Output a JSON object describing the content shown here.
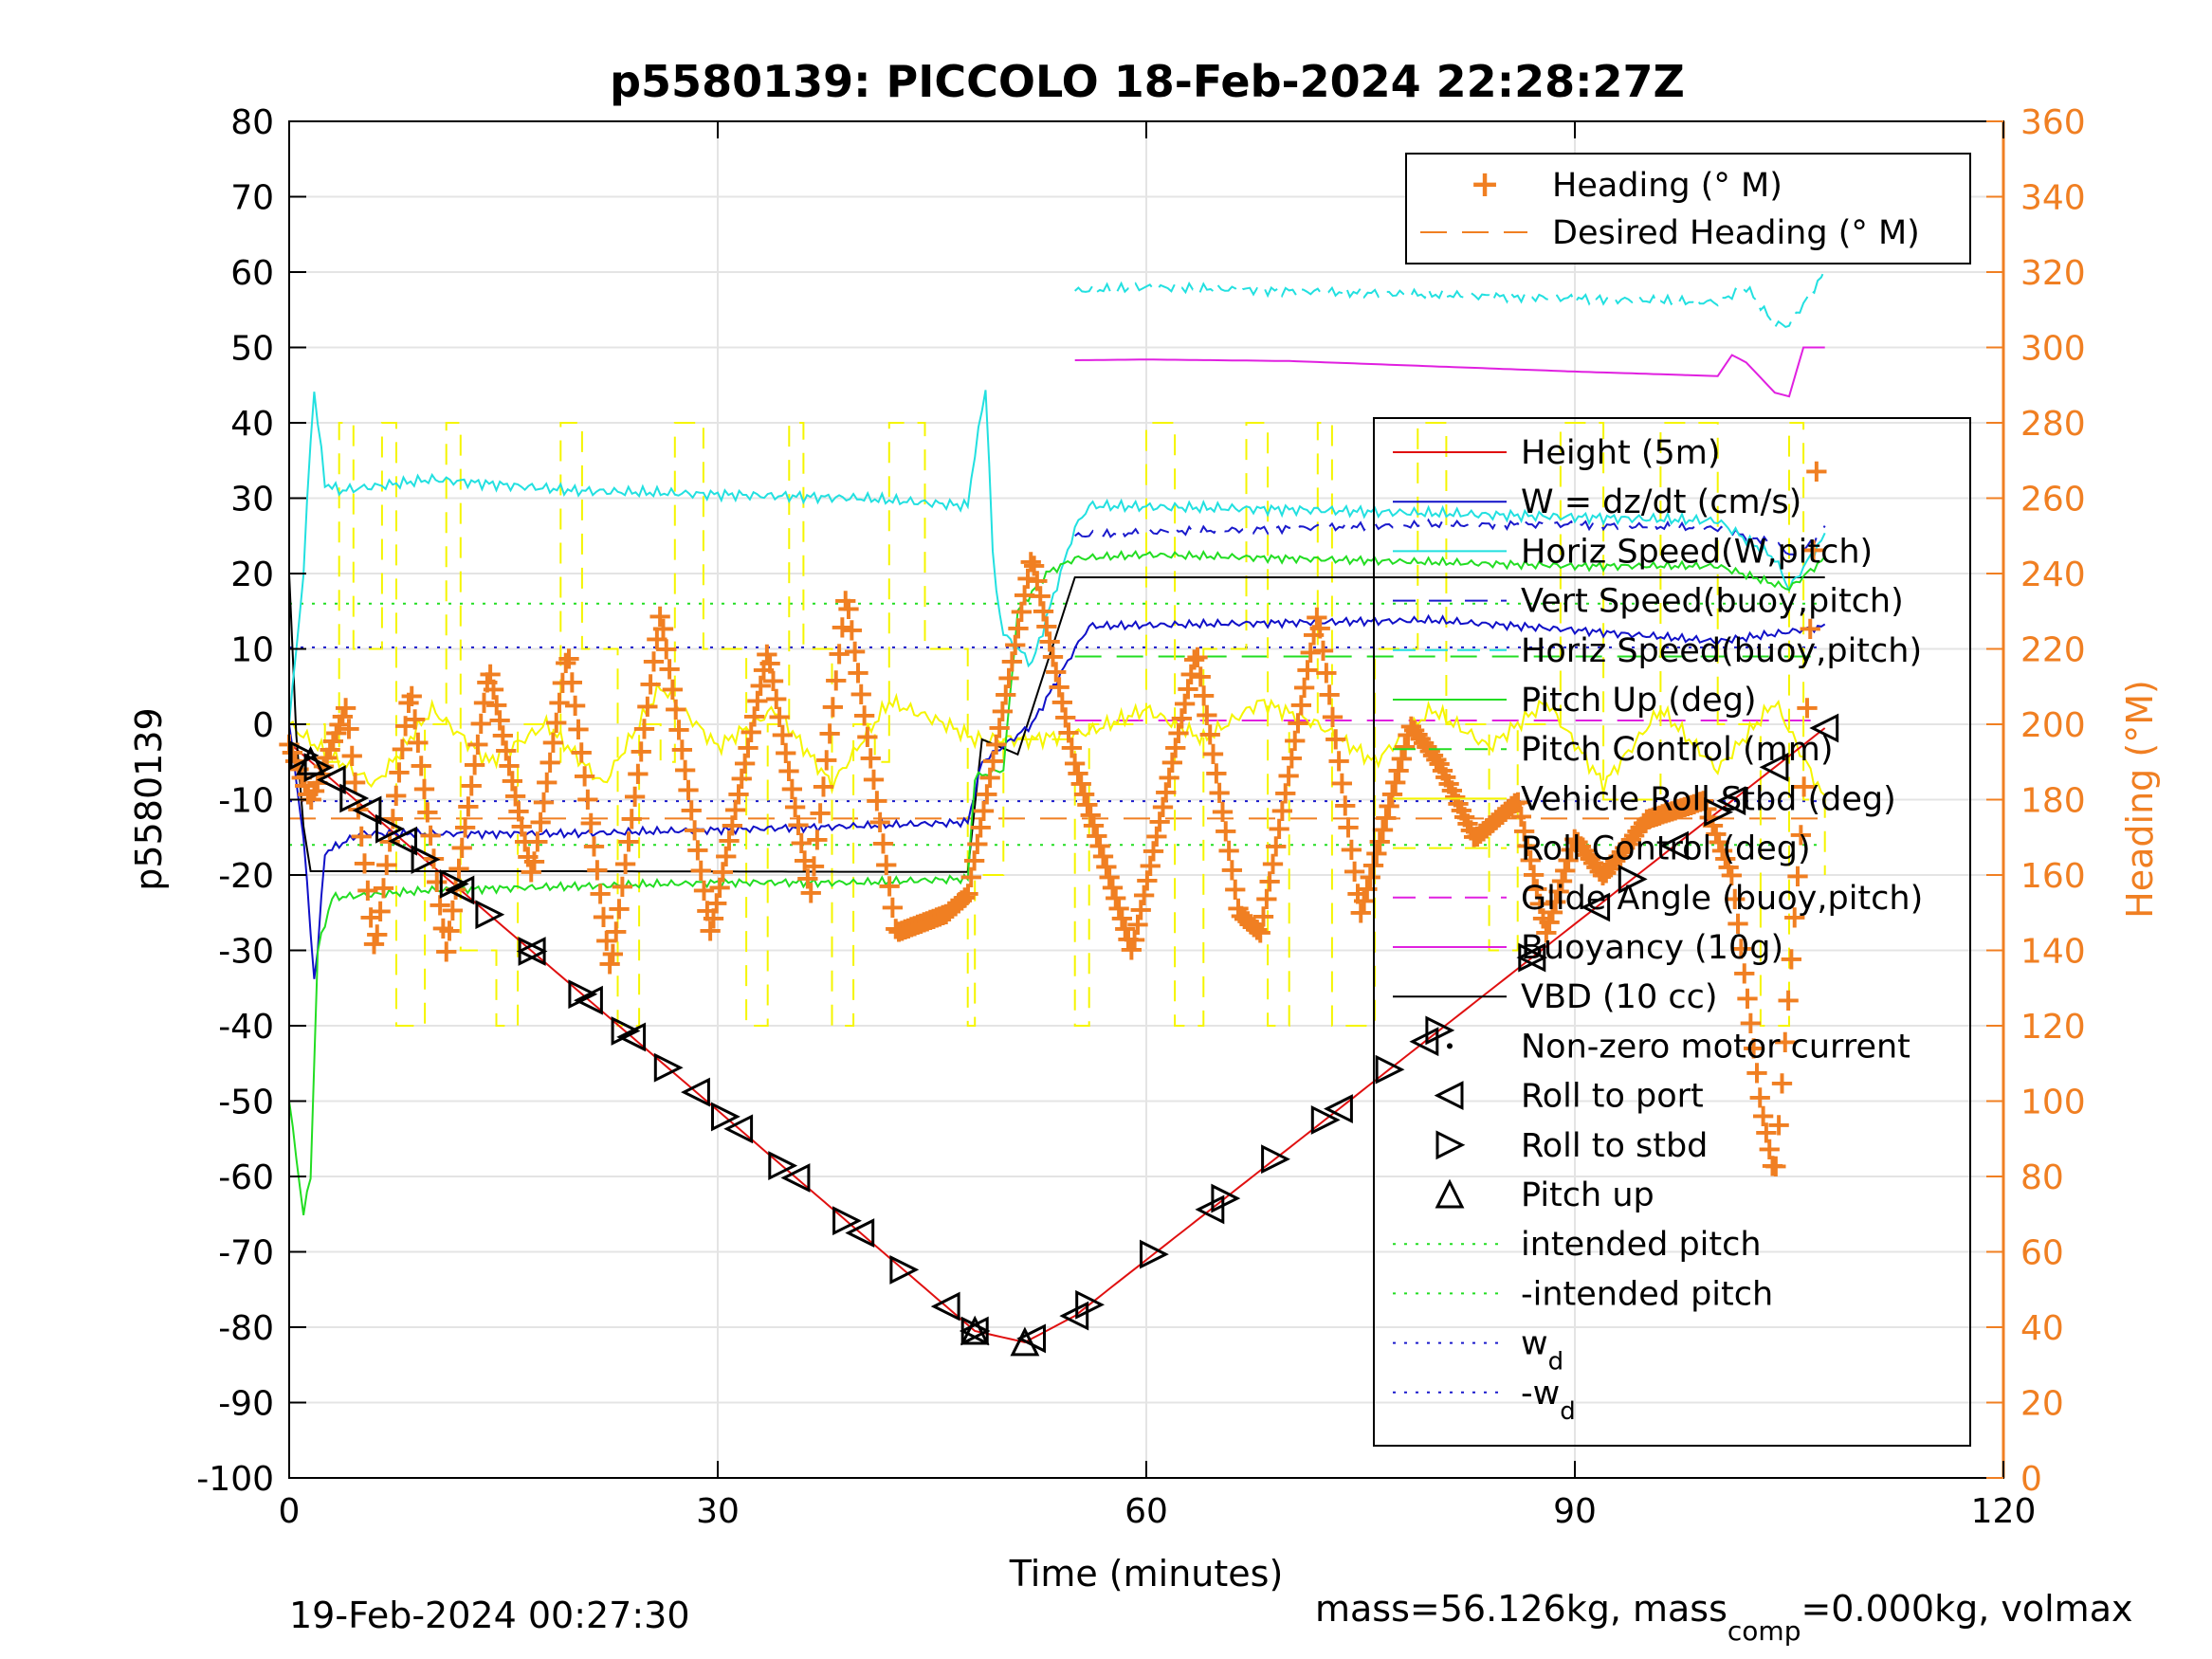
{
  "chart_data": {
    "type": "line",
    "title": "p5580139: PICCOLO 18-Feb-2024 22:28:27Z",
    "xlabel": "Time (minutes)",
    "ylabel": "p5580139",
    "ylabel_right": "Heading (°M)",
    "xlim": [
      0,
      120
    ],
    "ylim": [
      -100,
      80
    ],
    "ylim_right": [
      0,
      360
    ],
    "x_ticks": [
      "0",
      "30",
      "60",
      "90",
      "120"
    ],
    "y_ticks": [
      "80",
      "70",
      "60",
      "50",
      "40",
      "30",
      "20",
      "10",
      "0",
      "-10",
      "-20",
      "-30",
      "-40",
      "-50",
      "-60",
      "-70",
      "-80",
      "-90",
      "-100"
    ],
    "y_ticks_right": [
      "360",
      "340",
      "320",
      "300",
      "280",
      "260",
      "240",
      "220",
      "200",
      "180",
      "160",
      "140",
      "120",
      "100",
      "80",
      "60",
      "40",
      "20",
      "0"
    ],
    "grid": true,
    "legend_top": {
      "placement": "top-right",
      "entries": [
        "Heading (° M)",
        "Desired Heading (° M)"
      ]
    },
    "legend_main": {
      "placement": "right",
      "entries": [
        {
          "label": "Height (5m)",
          "sub": ""
        },
        {
          "label": "W = dz/dt (cm/s)",
          "sub": ""
        },
        {
          "label": "Horiz Speed(W,pitch)",
          "sub": ""
        },
        {
          "label": "Vert Speed(buoy,pitch)",
          "sub": ""
        },
        {
          "label": "Horiz Speed(buoy,pitch)",
          "sub": ""
        },
        {
          "label": "Pitch Up (deg)",
          "sub": ""
        },
        {
          "label": "Pitch Control (mm)",
          "sub": ""
        },
        {
          "label": "Vehicle Roll Stbd (deg)",
          "sub": ""
        },
        {
          "label": "Roll Control (deg)",
          "sub": ""
        },
        {
          "label": "Glide Angle (buoy,pitch)",
          "sub": ""
        },
        {
          "label": "Buoyancy (10g)",
          "sub": ""
        },
        {
          "label": "VBD (10 cc)",
          "sub": ""
        },
        {
          "label": "Non-zero motor current",
          "sub": ""
        },
        {
          "label": "Roll to port",
          "sub": ""
        },
        {
          "label": "Roll to stbd",
          "sub": ""
        },
        {
          "label": "Pitch up",
          "sub": ""
        },
        {
          "label": "intended pitch",
          "sub": ""
        },
        {
          "label": "-intended pitch",
          "sub": ""
        },
        {
          "label": "w",
          "sub": "d"
        },
        {
          "label": "-w",
          "sub": "d"
        }
      ]
    },
    "colors": {
      "height": "#e01010",
      "w": "#1010c8",
      "horiz_speed_w": "#22e0e0",
      "vert_speed_buoy": "#1a1acc",
      "horiz_speed_buoy": "#22e0e0",
      "pitch_up": "#22dd22",
      "pitch_control": "#22dd22",
      "roll": "#f5f500",
      "roll_control": "#f5f500",
      "glide_angle": "#e020e0",
      "buoyancy": "#e020e0",
      "vbd": "#000000",
      "heading": "#f07f22",
      "intended_pitch": "#22dd22",
      "w_d": "#1a1acc"
    },
    "series": [
      {
        "name": "Height (5m)",
        "x": [
          0,
          48,
          51.5,
          55,
          107.5
        ],
        "y": [
          -2.5,
          -80.5,
          -82,
          -78.5,
          -0.5
        ]
      },
      {
        "name": "VBD (10 cc)",
        "x": [
          0,
          0.7,
          1.5,
          20,
          47.5,
          48.5,
          51,
          55,
          80,
          107.5
        ],
        "y": [
          20,
          -10,
          -19.5,
          -19.5,
          -19.6,
          -2,
          -4,
          19.5,
          19.5,
          19.5
        ]
      },
      {
        "name": "W = dz/dt (cm/s)",
        "x": [
          0,
          1,
          1.8,
          2.5,
          5,
          10,
          20,
          30,
          40,
          47.5,
          48.5,
          52,
          55,
          56,
          70,
          80,
          90,
          100,
          104,
          107.5
        ],
        "y": [
          0,
          -15,
          -35,
          -17,
          -14.5,
          -14.5,
          -14.5,
          -14,
          -13.5,
          -13,
          -5,
          0,
          10,
          13,
          13.5,
          13.8,
          12.5,
          11,
          12,
          13
        ]
      },
      {
        "name": "Vert Speed(buoy,pitch)",
        "x": [
          55,
          60,
          70,
          80,
          90,
          100,
          104,
          105.5,
          107.5
        ],
        "y": [
          25,
          25.5,
          26,
          26.5,
          26.5,
          26,
          24,
          22,
          26
        ]
      },
      {
        "name": "Horiz Speed(W,pitch)",
        "x": [
          0,
          1,
          1.7,
          2.5,
          3.5,
          10,
          20,
          30,
          40,
          47.5,
          48,
          48.8,
          49.3,
          50,
          52,
          55,
          56,
          70,
          80,
          90,
          100,
          104,
          105,
          107.5
        ],
        "y": [
          0,
          20,
          45,
          32,
          31,
          32.5,
          31,
          30.5,
          30,
          29,
          36,
          45,
          20,
          12,
          8,
          26,
          29,
          28.5,
          28,
          27.5,
          27,
          22,
          18,
          25
        ]
      },
      {
        "name": "Horiz Speed(buoy,pitch)",
        "x": [
          55,
          60,
          70,
          80,
          90,
          100,
          102,
          104,
          105,
          107.5
        ],
        "y": [
          57.5,
          58,
          57.5,
          57,
          56.5,
          56,
          58,
          53,
          53,
          60
        ]
      },
      {
        "name": "Pitch Up (deg)",
        "x": [
          0,
          1,
          1.5,
          2,
          3,
          10,
          20,
          30,
          40,
          47.5,
          48,
          50,
          51,
          53,
          55,
          60,
          70,
          80,
          90,
          100,
          105,
          107.5
        ],
        "y": [
          -50,
          -65,
          -60,
          -30,
          -23,
          -22,
          -21.5,
          -21,
          -21,
          -20.5,
          -7,
          -6,
          15,
          20,
          22,
          22.5,
          22,
          21.5,
          21,
          21,
          18,
          22
        ]
      },
      {
        "name": "Buoyancy (10g)",
        "x": [
          55,
          60,
          70,
          80,
          90,
          100,
          101,
          102,
          104,
          105,
          106,
          107.5
        ],
        "y": [
          48.3,
          48.4,
          48.2,
          47.5,
          46.8,
          46.2,
          49,
          48,
          44,
          43.5,
          50,
          50
        ]
      },
      {
        "name": "Heading (° M)",
        "x": [
          0,
          1.5,
          4,
          6,
          8.5,
          11,
          14,
          17,
          19.5,
          22.5,
          26,
          29.5,
          33.5,
          36.5,
          39,
          42.5,
          46,
          47.5,
          52,
          55,
          59,
          63.5,
          66.5,
          68,
          72,
          75,
          78.5,
          80.5,
          83,
          86,
          88,
          90,
          92,
          95,
          99,
          101,
          103,
          104,
          106,
          107
        ],
        "y_right": [
          195,
          180,
          205,
          140,
          210,
          140,
          215,
          160,
          220,
          135,
          230,
          145,
          220,
          155,
          235,
          145,
          150,
          155,
          245,
          190,
          140,
          220,
          150,
          145,
          230,
          150,
          200,
          190,
          170,
          180,
          145,
          170,
          160,
          175,
          180,
          160,
          100,
          80,
          180,
          275
        ]
      }
    ],
    "reference_lines": [
      {
        "name": "intended pitch",
        "y": 16
      },
      {
        "name": "-intended pitch",
        "y": -16
      },
      {
        "name": "w_d",
        "y": 10.2
      },
      {
        "name": "-w_d",
        "y": -10.2
      },
      {
        "name": "Desired Heading (° M)",
        "y_right": 175
      },
      {
        "name": "Glide Angle (buoy,pitch)",
        "y": 0.5
      },
      {
        "name": "Pitch Control (mm)",
        "y": 9
      }
    ],
    "roll_to_port_x": [
      3,
      5.5,
      8,
      12,
      17,
      21,
      24,
      28.5,
      31.5,
      35.5,
      40,
      46,
      48,
      52,
      55,
      64.5,
      73.5,
      79.5,
      87,
      91.5,
      97,
      101,
      104,
      107.5
    ],
    "roll_to_stbd_x": [
      1,
      2,
      4.5,
      7,
      9.5,
      11.5,
      14,
      17,
      20.5,
      23.5,
      26.5,
      30.5,
      34.5,
      39,
      43,
      48,
      56,
      60.5,
      65.5,
      69,
      72.5,
      77,
      80.5,
      87,
      94,
      100
    ]
  },
  "footer": {
    "date_left": "19-Feb-2024 00:27:30",
    "mass_text": "mass=56.126kg, mass",
    "mass_sub": "comp",
    "mass_rest": "=0.000kg, volmax"
  }
}
